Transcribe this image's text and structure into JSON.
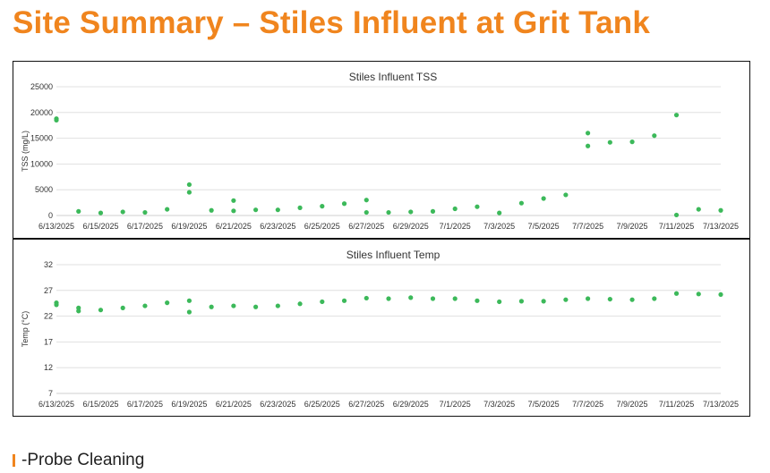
{
  "page": {
    "title": "Site Summary – Stiles Influent at Grit Tank"
  },
  "legend": {
    "label": "-Probe Cleaning",
    "color": "#f0851e"
  },
  "colors": {
    "series": "#3cb95a",
    "title": "#f0851e"
  },
  "chart_data": [
    {
      "type": "scatter",
      "title": "Stiles Influent TSS",
      "xlabel": "",
      "ylabel": "TSS (mg/L)",
      "ylim": [
        0,
        25000
      ],
      "yticks": [
        0,
        5000,
        10000,
        15000,
        20000,
        25000
      ],
      "xlim": [
        "6/13/2025",
        "7/13/2025"
      ],
      "xticks": [
        "6/13/2025",
        "6/15/2025",
        "6/17/2025",
        "6/19/2025",
        "6/21/2025",
        "6/23/2025",
        "6/25/2025",
        "6/27/2025",
        "6/29/2025",
        "7/1/2025",
        "7/3/2025",
        "7/5/2025",
        "7/7/2025",
        "7/9/2025",
        "7/11/2025",
        "7/13/2025"
      ],
      "grid": true,
      "series": [
        {
          "x": [
            "6/13/2025",
            "6/13/2025",
            "6/14/2025",
            "6/15/2025",
            "6/16/2025",
            "6/17/2025",
            "6/18/2025",
            "6/19/2025",
            "6/19/2025",
            "6/20/2025",
            "6/21/2025",
            "6/21/2025",
            "6/22/2025",
            "6/23/2025",
            "6/24/2025",
            "6/25/2025",
            "6/26/2025",
            "6/27/2025",
            "6/27/2025",
            "6/28/2025",
            "6/29/2025",
            "6/30/2025",
            "7/1/2025",
            "7/2/2025",
            "7/3/2025",
            "7/4/2025",
            "7/5/2025",
            "7/6/2025",
            "7/7/2025",
            "7/7/2025",
            "7/8/2025",
            "7/9/2025",
            "7/10/2025",
            "7/11/2025",
            "7/11/2025",
            "7/12/2025",
            "7/13/2025"
          ],
          "y": [
            18500,
            18800,
            800,
            500,
            700,
            600,
            1200,
            4500,
            6000,
            1000,
            2900,
            900,
            1100,
            1100,
            1500,
            1800,
            2300,
            3000,
            600,
            600,
            700,
            800,
            1300,
            1700,
            500,
            2400,
            3300,
            4000,
            16000,
            13500,
            14200,
            14300,
            15500,
            19500,
            100,
            1200,
            1000
          ]
        }
      ]
    },
    {
      "type": "scatter",
      "title": "Stiles Influent Temp",
      "xlabel": "",
      "ylabel": "Temp (°C)",
      "ylim": [
        7,
        32
      ],
      "yticks": [
        7,
        12,
        17,
        22,
        27,
        32
      ],
      "xlim": [
        "6/13/2025",
        "7/13/2025"
      ],
      "xticks": [
        "6/13/2025",
        "6/15/2025",
        "6/17/2025",
        "6/19/2025",
        "6/21/2025",
        "6/23/2025",
        "6/25/2025",
        "6/27/2025",
        "6/29/2025",
        "7/1/2025",
        "7/3/2025",
        "7/5/2025",
        "7/7/2025",
        "7/9/2025",
        "7/11/2025",
        "7/13/2025"
      ],
      "grid": true,
      "series": [
        {
          "x": [
            "6/13/2025",
            "6/13/2025",
            "6/14/2025",
            "6/14/2025",
            "6/15/2025",
            "6/16/2025",
            "6/17/2025",
            "6/18/2025",
            "6/19/2025",
            "6/19/2025",
            "6/20/2025",
            "6/21/2025",
            "6/22/2025",
            "6/23/2025",
            "6/24/2025",
            "6/25/2025",
            "6/26/2025",
            "6/27/2025",
            "6/28/2025",
            "6/29/2025",
            "6/30/2025",
            "7/1/2025",
            "7/2/2025",
            "7/3/2025",
            "7/4/2025",
            "7/5/2025",
            "7/6/2025",
            "7/7/2025",
            "7/8/2025",
            "7/9/2025",
            "7/10/2025",
            "7/11/2025",
            "7/12/2025",
            "7/13/2025"
          ],
          "y": [
            24.6,
            24.2,
            23.0,
            23.6,
            23.2,
            23.6,
            24.0,
            24.6,
            25.0,
            22.8,
            23.8,
            24.0,
            23.8,
            24.0,
            24.4,
            24.8,
            25.0,
            25.5,
            25.4,
            25.6,
            25.4,
            25.4,
            25.0,
            24.8,
            24.9,
            24.9,
            25.2,
            25.4,
            25.3,
            25.2,
            25.4,
            26.4,
            26.3,
            26.2
          ]
        }
      ]
    }
  ]
}
